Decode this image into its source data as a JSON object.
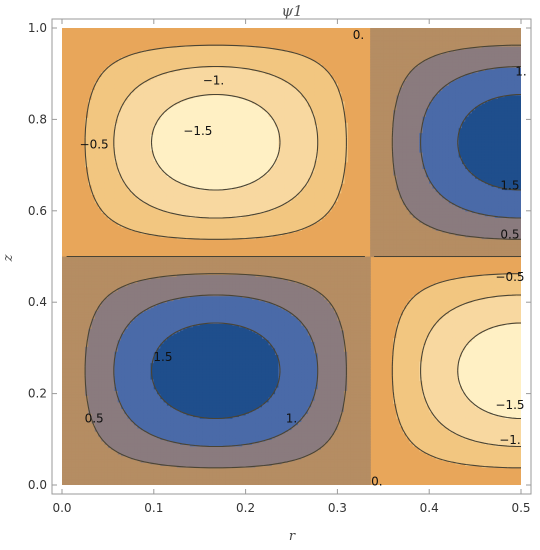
{
  "chart_data": {
    "type": "contour",
    "title": "ψ1",
    "xlabel": "r",
    "ylabel": "z",
    "xlim": [
      0,
      0.5
    ],
    "ylim": [
      0,
      1.0
    ],
    "xticks": [
      "0.0",
      "0.1",
      "0.2",
      "0.3",
      "0.4",
      "0.5"
    ],
    "yticks": [
      "0.0",
      "0.2",
      "0.4",
      "0.6",
      "0.8",
      "1.0"
    ],
    "contour_levels": [
      -1.5,
      -1.0,
      -0.5,
      0.0,
      0.5,
      1.0,
      1.5
    ],
    "fill_colors": [
      "#1f4e8c",
      "#4a6aa8",
      "#8a7b7e",
      "#b58d63",
      "#e8a65a",
      "#f2c680",
      "#f8d8a0",
      "#fff0c4"
    ],
    "line_color": "#4a4434",
    "extrema": [
      {
        "r": 0.155,
        "z": 0.74,
        "value": -1.75
      },
      {
        "r": 0.165,
        "z": 0.24,
        "value": 1.75
      },
      {
        "r": 0.5,
        "z": 0.74,
        "value": 1.75
      },
      {
        "r": 0.5,
        "z": 0.24,
        "value": -1.75
      }
    ],
    "contour_labels": [
      {
        "text": "0.",
        "r": 0.323,
        "z": 0.985
      },
      {
        "text": "−1.",
        "r": 0.165,
        "z": 0.885
      },
      {
        "text": "1.",
        "r": 0.5,
        "z": 0.905
      },
      {
        "text": "−0.5",
        "r": 0.035,
        "z": 0.745
      },
      {
        "text": "−1.5",
        "r": 0.148,
        "z": 0.775
      },
      {
        "text": "1.5",
        "r": 0.488,
        "z": 0.655
      },
      {
        "text": "0.5",
        "r": 0.488,
        "z": 0.548
      },
      {
        "text": "−0.5",
        "r": 0.488,
        "z": 0.455
      },
      {
        "text": "1.5",
        "r": 0.11,
        "z": 0.28
      },
      {
        "text": "0.5",
        "r": 0.035,
        "z": 0.145
      },
      {
        "text": "1.",
        "r": 0.25,
        "z": 0.145
      },
      {
        "text": "−1.5",
        "r": 0.488,
        "z": 0.175
      },
      {
        "text": "−1.",
        "r": 0.488,
        "z": 0.098
      },
      {
        "text": "0.",
        "r": 0.343,
        "z": 0.008
      }
    ]
  }
}
